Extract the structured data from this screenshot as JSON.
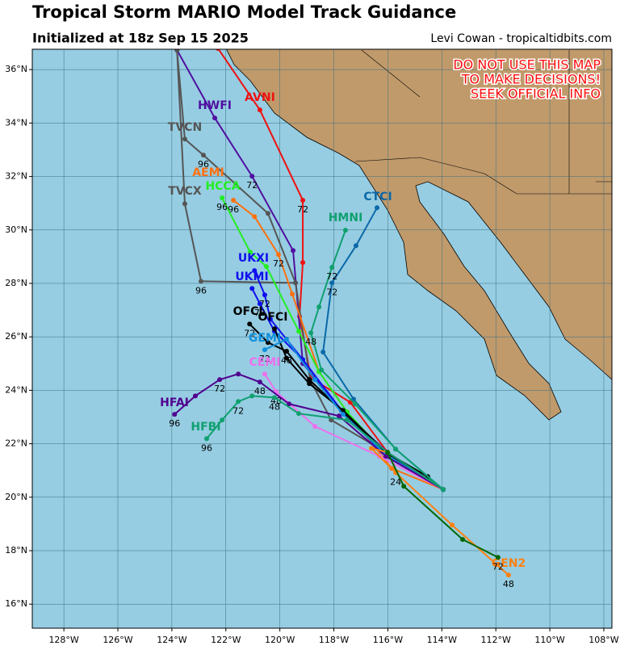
{
  "header": {
    "title": "Tropical Storm MARIO Model Track Guidance",
    "subtitle": "Initialized at 18z Sep 15 2025",
    "credit": "Levi Cowan - tropicaltidbits.com"
  },
  "warning": [
    "DO NOT USE THIS MAP",
    "TO MAKE DECISIONS!",
    "SEEK OFFICIAL INFO"
  ],
  "map": {
    "xlim": [
      -129.17,
      -107.7
    ],
    "ylim": [
      15.1,
      36.76
    ],
    "xticks": [
      {
        "value": -128,
        "label": "128°W"
      },
      {
        "value": -126,
        "label": "126°W"
      },
      {
        "value": -124,
        "label": "124°W"
      },
      {
        "value": -122,
        "label": "122°W"
      },
      {
        "value": -120,
        "label": "120°W"
      },
      {
        "value": -118,
        "label": "118°W"
      },
      {
        "value": -116,
        "label": "116°W"
      },
      {
        "value": -114,
        "label": "114°W"
      },
      {
        "value": -112,
        "label": "112°W"
      },
      {
        "value": -110,
        "label": "110°W"
      },
      {
        "value": -108,
        "label": "108°W"
      }
    ],
    "yticks": [
      {
        "value": 16,
        "label": "16°N"
      },
      {
        "value": 18,
        "label": "18°N"
      },
      {
        "value": 20,
        "label": "20°N"
      },
      {
        "value": 22,
        "label": "22°N"
      },
      {
        "value": 24,
        "label": "24°N"
      },
      {
        "value": 26,
        "label": "26°N"
      },
      {
        "value": 28,
        "label": "28°N"
      },
      {
        "value": 30,
        "label": "30°N"
      },
      {
        "value": 32,
        "label": "32°N"
      },
      {
        "value": 34,
        "label": "34°N"
      },
      {
        "value": 36,
        "label": "36°N"
      }
    ],
    "tracks": [
      {
        "name": "AVNI",
        "color": "#ee1111",
        "points": [
          {
            "lon": -113.95,
            "lat": 20.29
          },
          {
            "lon": -116.01,
            "lat": 21.68
          },
          {
            "lon": -117.39,
            "lat": 23.55
          },
          {
            "lon": -118.85,
            "lat": 24.46
          },
          {
            "lon": -119.27,
            "lat": 26.76
          },
          {
            "lon": -119.15,
            "lat": 28.78
          },
          {
            "lon": -119.15,
            "lat": 31.11,
            "hours": 72
          },
          {
            "lon": -120.74,
            "lat": 34.49
          },
          {
            "lon": -122.29,
            "lat": 36.79
          }
        ]
      },
      {
        "name": "HWFI",
        "color": "#5010a0",
        "points": [
          {
            "lon": -113.95,
            "lat": 20.29
          },
          {
            "lon": -116.01,
            "lat": 21.68
          },
          {
            "lon": -117.66,
            "lat": 23.19
          },
          {
            "lon": -119.15,
            "lat": 25.0
          },
          {
            "lon": -119.51,
            "lat": 29.23
          },
          {
            "lon": -121.03,
            "lat": 32.01,
            "hours": 72
          },
          {
            "lon": -122.41,
            "lat": 34.19
          },
          {
            "lon": -123.81,
            "lat": 36.73
          }
        ]
      },
      {
        "name": "TVCN",
        "color": "#555555",
        "points": [
          {
            "lon": -113.95,
            "lat": 20.29
          },
          {
            "lon": -116.07,
            "lat": 21.68
          },
          {
            "lon": -118.1,
            "lat": 22.89
          },
          {
            "lon": -118.88,
            "lat": 24.4
          },
          {
            "lon": -119.42,
            "lat": 28.02
          },
          {
            "lon": -120.44,
            "lat": 30.62
          },
          {
            "lon": -122.83,
            "lat": 32.8,
            "hours": 96
          },
          {
            "lon": -123.52,
            "lat": 33.4
          },
          {
            "lon": -123.81,
            "lat": 36.73
          }
        ]
      },
      {
        "name": "TVCX",
        "color": "#555555",
        "points": [
          {
            "lon": -119.42,
            "lat": 28.02
          },
          {
            "lon": -122.92,
            "lat": 28.08,
            "hours": 96
          },
          {
            "lon": -123.52,
            "lat": 30.98
          },
          {
            "lon": -123.81,
            "lat": 36.73
          }
        ]
      },
      {
        "name": "AEMI",
        "color": "#ff7010",
        "points": [
          {
            "lon": -113.95,
            "lat": 20.29
          },
          {
            "lon": -115.86,
            "lat": 21.08
          },
          {
            "lon": -117.51,
            "lat": 23.19
          },
          {
            "lon": -118.55,
            "lat": 24.7
          },
          {
            "lon": -119.54,
            "lat": 27.6
          },
          {
            "lon": -120.05,
            "lat": 29.08,
            "hours": 72
          },
          {
            "lon": -120.94,
            "lat": 30.5
          },
          {
            "lon": -121.72,
            "lat": 31.11,
            "hours": 96
          }
        ]
      },
      {
        "name": "HCCA",
        "color": "#22ee22",
        "points": [
          {
            "lon": -113.95,
            "lat": 20.29
          },
          {
            "lon": -116.01,
            "lat": 21.53
          },
          {
            "lon": -117.51,
            "lat": 23.19
          },
          {
            "lon": -118.55,
            "lat": 24.7
          },
          {
            "lon": -119.3,
            "lat": 26.21
          },
          {
            "lon": -120.5,
            "lat": 28.63
          },
          {
            "lon": -121.1,
            "lat": 29.17
          },
          {
            "lon": -122.14,
            "lat": 31.2,
            "hours": 96
          }
        ]
      },
      {
        "name": "UKXI",
        "color": "#1010ee",
        "points": [
          {
            "lon": -113.95,
            "lat": 20.29
          },
          {
            "lon": -116.07,
            "lat": 21.53
          },
          {
            "lon": -117.72,
            "lat": 23.25
          },
          {
            "lon": -119.15,
            "lat": 25.15
          },
          {
            "lon": -120.35,
            "lat": 26.66
          },
          {
            "lon": -120.56,
            "lat": 27.57,
            "hours": 72
          },
          {
            "lon": -120.94,
            "lat": 28.48
          }
        ]
      },
      {
        "name": "UKMI",
        "color": "#1010ee",
        "points": [
          {
            "lon": -113.95,
            "lat": 20.29
          },
          {
            "lon": -116.07,
            "lat": 21.53
          },
          {
            "lon": -117.72,
            "lat": 23.25
          },
          {
            "lon": -119.15,
            "lat": 25.15
          },
          {
            "lon": -120.2,
            "lat": 26.21
          },
          {
            "lon": -120.74,
            "lat": 27.24,
            "hours": 72
          },
          {
            "lon": -121.03,
            "lat": 27.81
          }
        ]
      },
      {
        "name": "OFCL",
        "color": "#000000",
        "points": [
          {
            "lon": -113.95,
            "lat": 20.29
          },
          {
            "lon": -114.52,
            "lat": 20.77
          },
          {
            "lon": -116.07,
            "lat": 21.68
          },
          {
            "lon": -117.66,
            "lat": 23.19
          },
          {
            "lon": -118.91,
            "lat": 24.4
          },
          {
            "lon": -119.75,
            "lat": 25.46,
            "hours": 48
          },
          {
            "lon": -120.44,
            "lat": 25.79
          },
          {
            "lon": -121.12,
            "lat": 26.48,
            "hours": 72
          }
        ]
      },
      {
        "name": "OFCI",
        "color": "#000000",
        "points": [
          {
            "lon": -113.95,
            "lat": 20.29
          },
          {
            "lon": -116.07,
            "lat": 21.68
          },
          {
            "lon": -117.66,
            "lat": 23.25
          },
          {
            "lon": -118.91,
            "lat": 24.25
          },
          {
            "lon": -119.75,
            "lat": 25.2
          },
          {
            "lon": -120.2,
            "lat": 26.3
          }
        ]
      },
      {
        "name": "GEMI",
        "color": "#1090dd",
        "points": [
          {
            "lon": -113.95,
            "lat": 20.29
          },
          {
            "lon": -116.07,
            "lat": 21.6
          },
          {
            "lon": -117.66,
            "lat": 23.1
          },
          {
            "lon": -118.7,
            "lat": 24.4
          },
          {
            "lon": -119.75,
            "lat": 25.91
          },
          {
            "lon": -120.56,
            "lat": 25.52,
            "hours": 72
          }
        ]
      },
      {
        "name": "CEMI",
        "color": "#ee70ee",
        "points": [
          {
            "lon": -113.95,
            "lat": 20.29
          },
          {
            "lon": -116.31,
            "lat": 21.53
          },
          {
            "lon": -118.7,
            "lat": 22.65
          },
          {
            "lon": -120.14,
            "lat": 23.95,
            "hours": 48
          },
          {
            "lon": -120.56,
            "lat": 24.61
          }
        ]
      },
      {
        "name": "HFAI",
        "color": "#500090",
        "points": [
          {
            "lon": -113.95,
            "lat": 20.29
          },
          {
            "lon": -116.07,
            "lat": 21.53
          },
          {
            "lon": -117.81,
            "lat": 23.04
          },
          {
            "lon": -119.66,
            "lat": 23.49
          },
          {
            "lon": -120.74,
            "lat": 24.31,
            "hours": 48
          },
          {
            "lon": -121.54,
            "lat": 24.61
          },
          {
            "lon": -122.23,
            "lat": 24.4,
            "hours": 72
          },
          {
            "lon": -123.13,
            "lat": 23.79
          },
          {
            "lon": -123.9,
            "lat": 23.1,
            "hours": 96
          }
        ]
      },
      {
        "name": "HFBI",
        "color": "#10a070",
        "points": [
          {
            "lon": -113.95,
            "lat": 20.29
          },
          {
            "lon": -116.01,
            "lat": 21.68
          },
          {
            "lon": -117.51,
            "lat": 22.89
          },
          {
            "lon": -119.3,
            "lat": 23.13
          },
          {
            "lon": -120.2,
            "lat": 23.73,
            "hours": 48
          },
          {
            "lon": -121.03,
            "lat": 23.79
          },
          {
            "lon": -121.54,
            "lat": 23.58,
            "hours": 72
          },
          {
            "lon": -122.14,
            "lat": 22.89
          },
          {
            "lon": -122.71,
            "lat": 22.19,
            "hours": 96
          }
        ]
      },
      {
        "name": "CTCI",
        "color": "#0a68a8",
        "points": [
          {
            "lon": -113.95,
            "lat": 20.29
          },
          {
            "lon": -115.71,
            "lat": 21.8
          },
          {
            "lon": -117.27,
            "lat": 23.67
          },
          {
            "lon": -118.4,
            "lat": 25.43
          },
          {
            "lon": -118.07,
            "lat": 28.02,
            "hours": 72
          },
          {
            "lon": -117.18,
            "lat": 29.41
          },
          {
            "lon": -116.4,
            "lat": 30.83
          }
        ]
      },
      {
        "name": "HMNI",
        "color": "#10a070",
        "points": [
          {
            "lon": -113.95,
            "lat": 20.29
          },
          {
            "lon": -115.71,
            "lat": 21.8
          },
          {
            "lon": -117.21,
            "lat": 23.49
          },
          {
            "lon": -118.46,
            "lat": 24.76
          },
          {
            "lon": -118.85,
            "lat": 26.15,
            "hours": 48
          },
          {
            "lon": -118.55,
            "lat": 27.12
          },
          {
            "lon": -118.07,
            "lat": 28.6,
            "hours": 72
          },
          {
            "lon": -117.57,
            "lat": 29.99
          }
        ]
      },
      {
        "name": "GEN2",
        "color": "#ff8010",
        "points": [
          {
            "lon": -116.01,
            "lat": 21.68
          },
          {
            "lon": -116.61,
            "lat": 21.83
          },
          {
            "lon": -115.71,
            "lat": 20.92,
            "hours": 24
          },
          {
            "lon": -113.62,
            "lat": 18.96
          },
          {
            "lon": -111.53,
            "lat": 17.09,
            "hours": 48
          }
        ]
      },
      {
        "color": "#006600",
        "points": [
          {
            "lon": -116.01,
            "lat": 21.68
          },
          {
            "lon": -115.41,
            "lat": 20.41
          },
          {
            "lon": -113.23,
            "lat": 18.42
          },
          {
            "lon": -111.92,
            "lat": 17.75,
            "hours": 72
          }
        ]
      }
    ]
  }
}
